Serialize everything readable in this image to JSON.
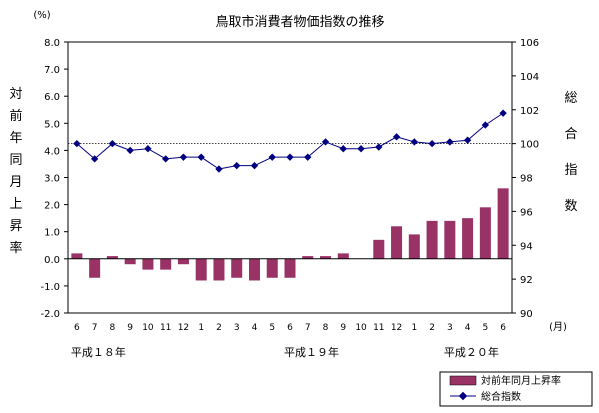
{
  "chart_data": {
    "type": "bar+line",
    "title": "鳥取市消費者物価指数の推移",
    "left_unit": "(%)",
    "right_unit": "",
    "x_unit": "(月)",
    "ylabel_left": "対前年同月上昇率",
    "ylabel_right": "総合指数",
    "left_ylim": [
      -2.0,
      8.0
    ],
    "left_ticks": [
      "8.0",
      "7.0",
      "6.0",
      "5.0",
      "4.0",
      "3.0",
      "2.0",
      "1.0",
      "0.0",
      "-1.0",
      "-2.0"
    ],
    "right_ylim": [
      90,
      106
    ],
    "right_ticks": [
      "106",
      "104",
      "102",
      "100",
      "98",
      "96",
      "94",
      "92",
      "90"
    ],
    "reference_line": 100.0,
    "categories": [
      "6",
      "7",
      "8",
      "9",
      "10",
      "11",
      "12",
      "1",
      "2",
      "3",
      "4",
      "5",
      "6",
      "7",
      "8",
      "9",
      "10",
      "11",
      "12",
      "1",
      "2",
      "3",
      "4",
      "5",
      "6"
    ],
    "year_labels": [
      {
        "label": "平成１８年",
        "start_index": 0
      },
      {
        "label": "平成１９年",
        "start_index": 12
      },
      {
        "label": "平成２０年",
        "start_index": 21
      }
    ],
    "series": [
      {
        "name": "対前年同月上昇率",
        "type": "bar",
        "axis": "left",
        "color": "#993366",
        "values": [
          0.2,
          -0.7,
          0.1,
          -0.2,
          -0.4,
          -0.4,
          -0.2,
          -0.8,
          -0.8,
          -0.7,
          -0.8,
          -0.7,
          -0.7,
          0.1,
          0.1,
          0.2,
          0.0,
          0.7,
          1.2,
          0.9,
          1.4,
          1.4,
          1.5,
          1.9,
          2.6
        ]
      },
      {
        "name": "総合指数",
        "type": "line",
        "axis": "right",
        "color": "#000080",
        "values": [
          100.0,
          99.1,
          100.0,
          99.6,
          99.7,
          99.1,
          99.2,
          99.2,
          98.5,
          98.7,
          98.7,
          99.2,
          99.2,
          99.2,
          100.1,
          99.7,
          99.7,
          99.8,
          100.4,
          100.1,
          100.0,
          100.1,
          100.2,
          101.1,
          101.8
        ]
      }
    ],
    "legend_position": "bottom-right"
  }
}
